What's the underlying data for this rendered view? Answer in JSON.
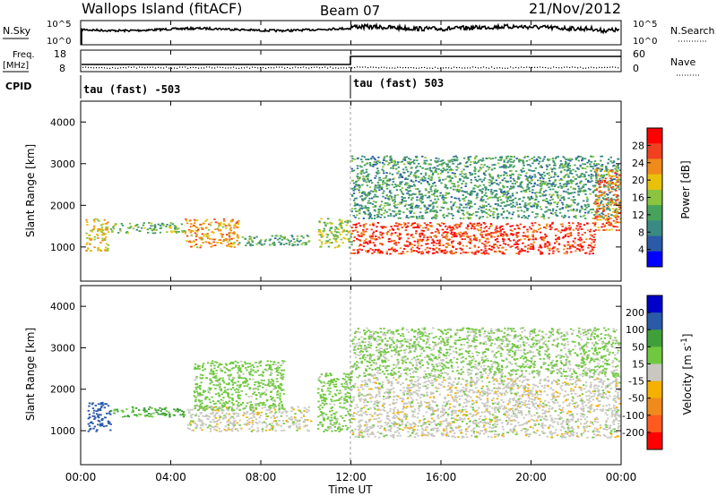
{
  "header": {
    "site": "Wallops Island (fitACF)",
    "beam": "Beam 07",
    "date": "21/Nov/2012"
  },
  "top_panels": {
    "nsky_label": "N.Sky",
    "nsky_ticks": [
      "10^5",
      "10^0"
    ],
    "nsearch_label": "N.Search",
    "nsearch_ticks": [
      "10^5",
      "10^0"
    ],
    "freq_label_1": "Freq.",
    "freq_label_2": "[MHz]",
    "freq_ticks": [
      "18",
      "8"
    ],
    "nave_label": "Nave",
    "nave_ticks": [
      "60",
      "0"
    ],
    "cpid_label": "CPID",
    "cpid_segments": [
      {
        "label": "tau (fast) -503",
        "start_hour": 0
      },
      {
        "label": "tau (fast) 503",
        "start_hour": 12
      }
    ]
  },
  "chart_data": [
    {
      "type": "heatmap",
      "title": "Power",
      "x": {
        "label": "Time UT",
        "range_hours": [
          0,
          24
        ],
        "tick_labels": [
          "00:00",
          "04:00",
          "08:00",
          "12:00",
          "16:00",
          "20:00",
          "00:00"
        ]
      },
      "y": {
        "label": "Slant Range [km]",
        "range": [
          180,
          4500
        ],
        "tick_labels": [
          "1000",
          "2000",
          "3000",
          "4000"
        ]
      },
      "colorbar": {
        "label": "Power [dB]",
        "ticks": [
          "4",
          "8",
          "12",
          "16",
          "20",
          "24",
          "28"
        ],
        "range": [
          0,
          32
        ]
      },
      "scatter_regions": [
        {
          "hours": [
            0.2,
            1.2
          ],
          "range_km": [
            900,
            1700
          ],
          "value_db": 20
        },
        {
          "hours": [
            1.3,
            4.6
          ],
          "range_km": [
            1350,
            1600
          ],
          "value_db": 14
        },
        {
          "hours": [
            4.6,
            7.0
          ],
          "range_km": [
            1000,
            1700
          ],
          "value_db": 22
        },
        {
          "hours": [
            7.0,
            10.2
          ],
          "range_km": [
            1050,
            1300
          ],
          "value_db": 12
        },
        {
          "hours": [
            10.5,
            12.0
          ],
          "range_km": [
            1000,
            1700
          ],
          "value_db": 16
        },
        {
          "hours": [
            12.0,
            22.8
          ],
          "range_km": [
            850,
            1600
          ],
          "value_db": 27
        },
        {
          "hours": [
            12.0,
            23.9
          ],
          "range_km": [
            1700,
            3200
          ],
          "value_db": 11
        },
        {
          "hours": [
            22.8,
            24.0
          ],
          "range_km": [
            1400,
            2900
          ],
          "value_db": 24
        }
      ]
    },
    {
      "type": "heatmap",
      "title": "Velocity",
      "x": {
        "label": "Time UT",
        "range_hours": [
          0,
          24
        ],
        "tick_labels": [
          "00:00",
          "04:00",
          "08:00",
          "12:00",
          "16:00",
          "20:00",
          "00:00"
        ]
      },
      "y": {
        "label": "Slant Range [km]",
        "range": [
          180,
          4500
        ],
        "tick_labels": [
          "1000",
          "2000",
          "3000",
          "4000"
        ]
      },
      "colorbar": {
        "label": "Velocity [m s^-1]",
        "ticks": [
          "200",
          "100",
          "50",
          "15",
          "-15",
          "-50",
          "-100",
          "-200"
        ],
        "range": [
          -250,
          250
        ]
      },
      "scatter_regions": [
        {
          "hours": [
            0.3,
            1.3
          ],
          "range_km": [
            1000,
            1700
          ],
          "value_ms": 150
        },
        {
          "hours": [
            1.3,
            4.6
          ],
          "range_km": [
            1350,
            1600
          ],
          "value_ms": 60
        },
        {
          "hours": [
            4.6,
            10.2
          ],
          "range_km": [
            1000,
            1600
          ],
          "value_ms": 0
        },
        {
          "hours": [
            5.0,
            9.0
          ],
          "range_km": [
            1500,
            2700
          ],
          "value_ms": 30
        },
        {
          "hours": [
            10.5,
            12.0
          ],
          "range_km": [
            1000,
            2400
          ],
          "value_ms": 30
        },
        {
          "hours": [
            12.0,
            23.9
          ],
          "range_km": [
            850,
            2300
          ],
          "value_ms": 0
        },
        {
          "hours": [
            12.0,
            23.9
          ],
          "range_km": [
            2300,
            3500
          ],
          "value_ms": 20
        }
      ]
    }
  ],
  "colors": {
    "power_scale": [
      "#0000ff",
      "#2a5aa8",
      "#3a8a84",
      "#47a35a",
      "#8bc43f",
      "#e8c20a",
      "#f08a1c",
      "#f04020",
      "#ff0000"
    ],
    "velocity_scale": [
      "#ff0000",
      "#ff5a1e",
      "#f08a1c",
      "#f5b000",
      "#c8c8c0",
      "#70c840",
      "#3fa03a",
      "#2a5aa8",
      "#0000c8"
    ],
    "line": "#000000"
  }
}
